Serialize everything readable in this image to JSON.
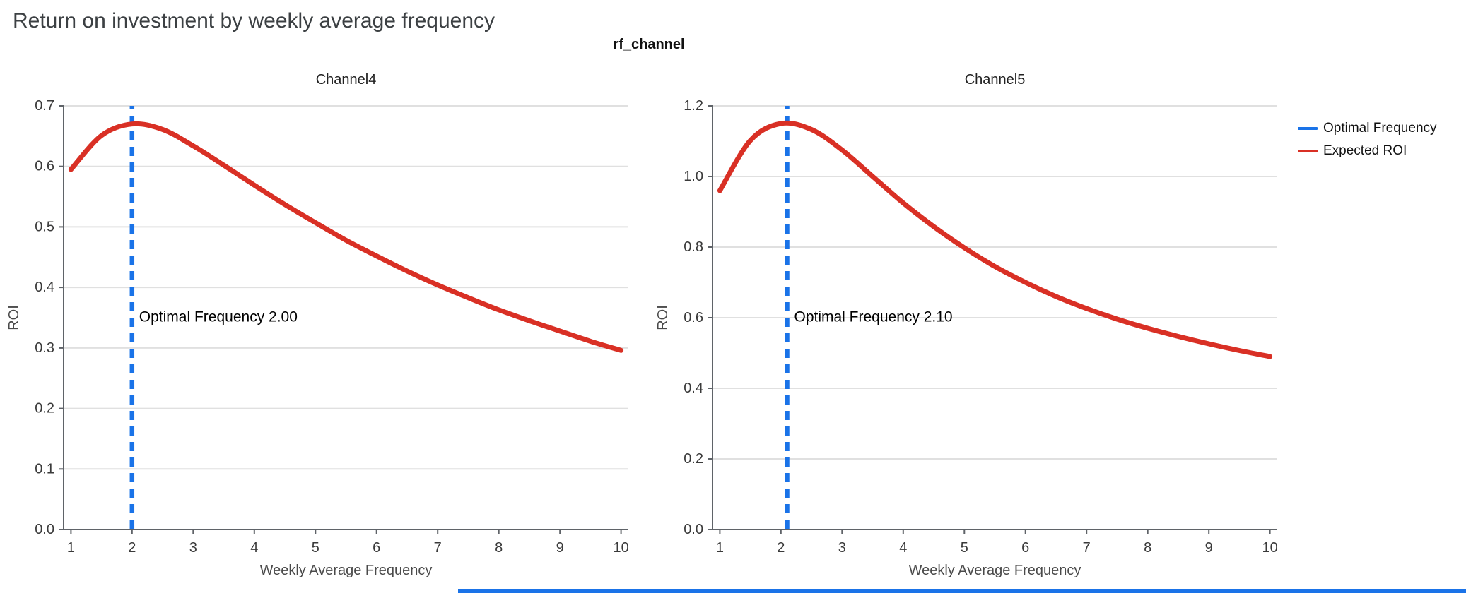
{
  "page": {
    "title": "Return on investment by weekly average frequency",
    "suptitle": "rf_channel"
  },
  "legend": {
    "items": [
      {
        "label": "Optimal Frequency",
        "color": "#1a73e8"
      },
      {
        "label": "Expected ROI",
        "color": "#d93025"
      }
    ]
  },
  "colors": {
    "curve": "#d93025",
    "optimal_line": "#1a73e8",
    "grid": "#e0e0e0",
    "spine": "#5f6368",
    "tick_label": "#3a3a3a",
    "axis_label": "#4a4a4a",
    "subplot_title": "#212121",
    "annotation": "#000000",
    "footer_bar": "#1a73e8"
  },
  "chart_data": [
    {
      "type": "line",
      "title": "Channel4",
      "xlabel": "Weekly Average Frequency",
      "ylabel": "ROI",
      "xlim": [
        0.88,
        10.12
      ],
      "ylim": [
        0,
        0.7
      ],
      "xticks": [
        1,
        2,
        3,
        4,
        5,
        6,
        7,
        8,
        9,
        10
      ],
      "xtick_labels": [
        "1",
        "2",
        "3",
        "4",
        "5",
        "6",
        "7",
        "8",
        "9",
        "10"
      ],
      "yticks": [
        0,
        0.1,
        0.2,
        0.3,
        0.4,
        0.5,
        0.6,
        0.7
      ],
      "ytick_labels": [
        "0.0",
        "0.1",
        "0.2",
        "0.3",
        "0.4",
        "0.5",
        "0.6",
        "0.7"
      ],
      "grid": "horizontal",
      "optimal_frequency": 2.0,
      "vline": {
        "name": "Optimal Frequency",
        "x": 2.0
      },
      "annotation": {
        "text": "Optimal Frequency  2.00",
        "x": 2.0,
        "y": 0.35
      },
      "series": [
        {
          "name": "Expected ROI",
          "x": [
            1,
            1.5,
            2,
            2.5,
            3,
            3.5,
            4,
            4.5,
            5,
            5.5,
            6,
            6.5,
            7,
            7.5,
            8,
            8.5,
            9,
            9.5,
            10
          ],
          "y": [
            0.595,
            0.651,
            0.67,
            0.661,
            0.634,
            0.602,
            0.569,
            0.537,
            0.507,
            0.478,
            0.452,
            0.427,
            0.404,
            0.383,
            0.363,
            0.345,
            0.328,
            0.311,
            0.296
          ]
        }
      ]
    },
    {
      "type": "line",
      "title": "Channel5",
      "xlabel": "Weekly Average Frequency",
      "ylabel": "ROI",
      "xlim": [
        0.88,
        10.12
      ],
      "ylim": [
        0,
        1.2
      ],
      "xticks": [
        1,
        2,
        3,
        4,
        5,
        6,
        7,
        8,
        9,
        10
      ],
      "xtick_labels": [
        "1",
        "2",
        "3",
        "4",
        "5",
        "6",
        "7",
        "8",
        "9",
        "10"
      ],
      "yticks": [
        0,
        0.2,
        0.4,
        0.6,
        0.8,
        1.0,
        1.2
      ],
      "ytick_labels": [
        "0.0",
        "0.2",
        "0.4",
        "0.6",
        "0.8",
        "1.0",
        "1.2"
      ],
      "grid": "horizontal",
      "optimal_frequency": 2.1,
      "vline": {
        "name": "Optimal Frequency",
        "x": 2.1
      },
      "annotation": {
        "text": "Optimal Frequency  2.10",
        "x": 2.1,
        "y": 0.6
      },
      "series": [
        {
          "name": "Expected ROI",
          "x": [
            1,
            1.5,
            2,
            2.5,
            3,
            3.5,
            4,
            4.5,
            5,
            5.5,
            6,
            6.5,
            7,
            7.5,
            8,
            8.5,
            9,
            9.5,
            10
          ],
          "y": [
            0.96,
            1.102,
            1.15,
            1.133,
            1.075,
            1.0,
            0.925,
            0.858,
            0.798,
            0.745,
            0.7,
            0.66,
            0.626,
            0.596,
            0.57,
            0.547,
            0.526,
            0.507,
            0.49
          ]
        }
      ]
    }
  ]
}
